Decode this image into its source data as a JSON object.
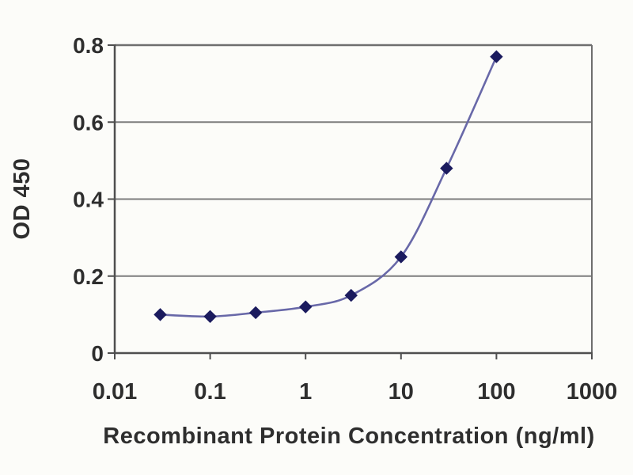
{
  "chart_data": {
    "type": "line",
    "title": "",
    "xlabel": "Recombinant Protein Concentration (ng/ml)",
    "ylabel": "OD 450",
    "x_scale": "log",
    "xlim": [
      0.01,
      1000
    ],
    "ylim": [
      0,
      0.8
    ],
    "x": [
      0.03,
      0.1,
      0.3,
      1,
      3,
      10,
      30,
      100
    ],
    "y": [
      0.1,
      0.095,
      0.105,
      0.12,
      0.15,
      0.25,
      0.48,
      0.77
    ],
    "x_tick_labels": [
      "0.01",
      "0.1",
      "1",
      "10",
      "100",
      "1000"
    ],
    "x_tick_values": [
      0.01,
      0.1,
      1,
      10,
      100,
      1000
    ],
    "y_tick_labels": [
      "0",
      "0.2",
      "0.4",
      "0.6",
      "0.8"
    ],
    "y_tick_values": [
      0,
      0.2,
      0.4,
      0.6,
      0.8
    ],
    "grid": "horizontal",
    "legend": "none",
    "marker": "diamond",
    "colors": {
      "line": "#6868a8",
      "marker": "#1b1b5e",
      "grid": "#7d7d7d",
      "axis": "#4f4f4f",
      "border": "#6e6e6e",
      "text": "#2e2e2e",
      "background": "#fcfcf9"
    }
  }
}
